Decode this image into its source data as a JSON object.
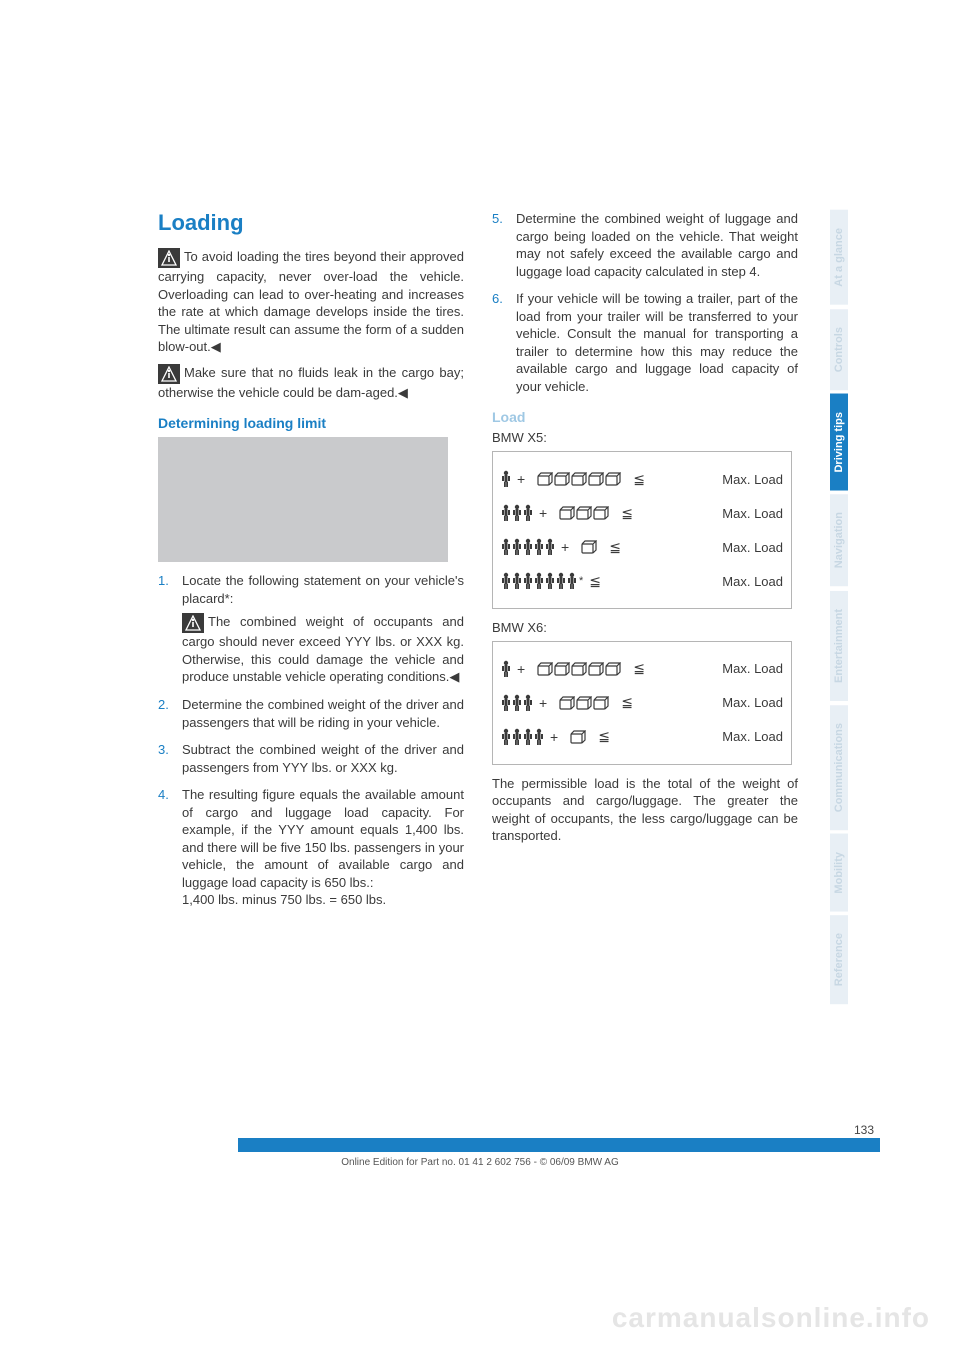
{
  "page": {
    "title": "Loading",
    "page_number": "133",
    "footer_text": "Online Edition for Part no. 01 41 2 602 756 - © 06/09 BMW AG",
    "watermark": "carmanualsonline.info"
  },
  "colors": {
    "accent": "#1a7fc4",
    "accent_light": "#9fc8e4",
    "tab_faded_bg": "#e8eff5",
    "tab_faded_text": "#c7d7e3",
    "body_text": "#3a3a3a",
    "border": "#b5b5b5",
    "watermark": "#e5e5e5"
  },
  "warnings": {
    "tire_overload": "To avoid loading the tires beyond their approved carrying capacity, never over-load the vehicle. Overloading can lead to over-heating and increases the rate at which damage develops inside the tires. The ultimate result can assume the form of a sudden blow-out.◀",
    "fluids": "Make sure that no fluids leak in the cargo bay; otherwise the vehicle could be dam-aged.◀"
  },
  "determining": {
    "heading": "Determining loading limit",
    "steps": [
      {
        "text": "Locate the following statement on your vehicle's placard*:",
        "warning": "The combined weight of occupants and cargo should never exceed YYY lbs. or XXX kg. Otherwise, this could damage the vehicle and produce unstable vehicle operating conditions.◀"
      },
      {
        "text": "Determine the combined weight of the driver and passengers that will be riding in your vehicle."
      },
      {
        "text": "Subtract the combined weight of the driver and passengers from YYY lbs. or XXX kg."
      },
      {
        "text": "The resulting figure equals the available amount of cargo and luggage load capacity. For example, if the YYY amount equals 1,400 lbs. and there will be five 150 lbs. passengers in your vehicle, the amount of available cargo and luggage load capacity is 650 lbs.:\n1,400 lbs. minus 750 lbs. = 650 lbs."
      },
      {
        "text": "Determine the combined weight of luggage and cargo being loaded on the vehicle. That weight may not safely exceed the available cargo and luggage load capacity calculated in step 4."
      },
      {
        "text": "If your vehicle will be towing a trailer, part of the load from your trailer will be transferred to your vehicle. Consult the manual for transporting a trailer to determine how this may reduce the available cargo and luggage load capacity of your vehicle."
      }
    ]
  },
  "load": {
    "heading": "Load",
    "x5_label": "BMW X5:",
    "x6_label": "BMW X6:",
    "max_load_label": "Max. Load",
    "x5_rows": [
      {
        "people": 1,
        "boxes": 5,
        "star": false
      },
      {
        "people": 3,
        "boxes": 3,
        "star": false
      },
      {
        "people": 5,
        "boxes": 1,
        "star": false
      },
      {
        "people": 7,
        "boxes": 0,
        "star": true
      }
    ],
    "x6_rows": [
      {
        "people": 1,
        "boxes": 5
      },
      {
        "people": 3,
        "boxes": 3
      },
      {
        "people": 4,
        "boxes": 1
      }
    ],
    "footnote": "The permissible load is the total of the weight of occupants and cargo/luggage. The greater the weight of occupants, the less cargo/luggage can be transported."
  },
  "tabs": [
    {
      "label": "At a glance",
      "active": false
    },
    {
      "label": "Controls",
      "active": false
    },
    {
      "label": "Driving tips",
      "active": true
    },
    {
      "label": "Navigation",
      "active": false
    },
    {
      "label": "Entertainment",
      "active": false
    },
    {
      "label": "Communications",
      "active": false
    },
    {
      "label": "Mobility",
      "active": false
    },
    {
      "label": "Reference",
      "active": false
    }
  ]
}
